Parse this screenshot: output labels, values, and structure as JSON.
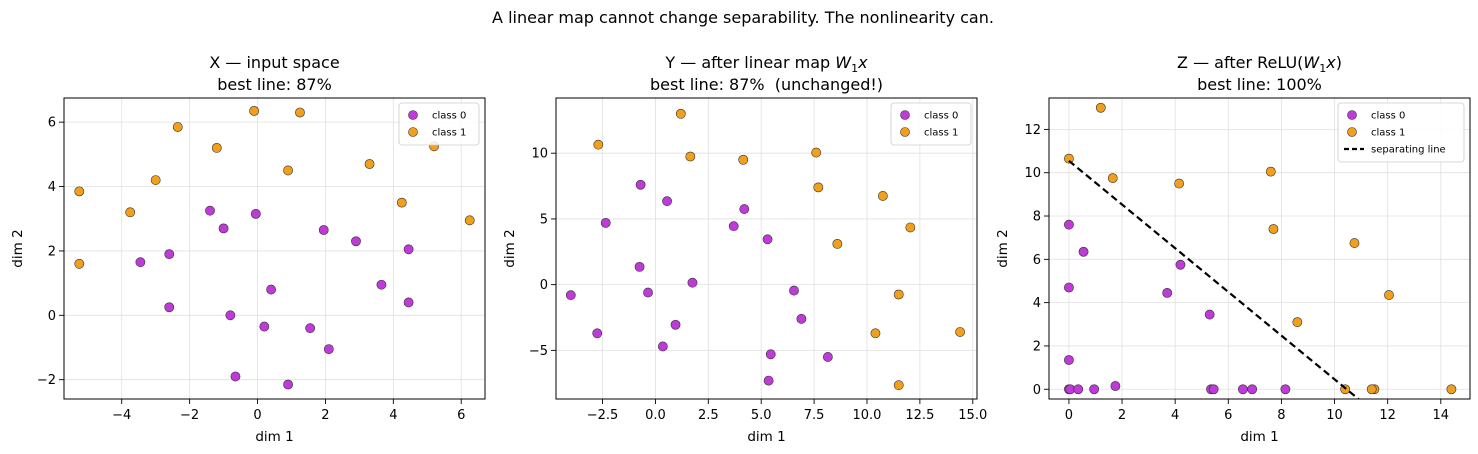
{
  "suptitle": "A linear map cannot change separability. The nonlinearity can.",
  "colors": {
    "class0": "#bf3ad8",
    "class1": "#f2a01b",
    "edge": "#333333",
    "grid": "#e0e0e0",
    "line": "#000000"
  },
  "chart_data": [
    {
      "type": "scatter",
      "title_main": "X — input space",
      "title_math": "",
      "title_suffix": "",
      "subtitle": "best line: 87%",
      "xlabel": "dim 1",
      "ylabel": "dim 2",
      "xlim": [
        -5.7,
        6.7
      ],
      "ylim": [
        -2.6,
        6.75
      ],
      "xticks": [
        -4,
        -2,
        0,
        2,
        4,
        6
      ],
      "xtick_labels": [
        "−4",
        "−2",
        "0",
        "2",
        "4",
        "6"
      ],
      "yticks": [
        -2,
        0,
        2,
        4,
        6
      ],
      "ytick_labels": [
        "−2",
        "0",
        "2",
        "4",
        "6"
      ],
      "grid": true,
      "legend_position": "top-right",
      "series": [
        {
          "name": "class 0",
          "color": "#bf3ad8",
          "points": [
            [
              -3.45,
              1.65
            ],
            [
              -2.6,
              1.9
            ],
            [
              -2.6,
              0.25
            ],
            [
              -1.4,
              3.25
            ],
            [
              -1.0,
              2.7
            ],
            [
              -0.05,
              3.15
            ],
            [
              -0.8,
              0.0
            ],
            [
              -0.65,
              -1.9
            ],
            [
              0.2,
              -0.35
            ],
            [
              0.4,
              0.8
            ],
            [
              0.9,
              -2.15
            ],
            [
              1.55,
              -0.4
            ],
            [
              1.95,
              2.65
            ],
            [
              2.1,
              -1.05
            ],
            [
              2.9,
              2.3
            ],
            [
              3.65,
              0.95
            ],
            [
              4.45,
              2.05
            ],
            [
              4.45,
              0.4
            ]
          ]
        },
        {
          "name": "class 1",
          "color": "#f2a01b",
          "points": [
            [
              -5.25,
              3.85
            ],
            [
              -5.25,
              1.6
            ],
            [
              -3.75,
              3.2
            ],
            [
              -3.0,
              4.2
            ],
            [
              -2.35,
              5.85
            ],
            [
              -1.2,
              5.2
            ],
            [
              -0.1,
              6.35
            ],
            [
              0.9,
              4.5
            ],
            [
              1.25,
              6.3
            ],
            [
              3.3,
              4.7
            ],
            [
              4.25,
              3.5
            ],
            [
              5.2,
              5.25
            ],
            [
              6.25,
              2.95
            ]
          ]
        }
      ]
    },
    {
      "type": "scatter",
      "title_main": "Y — after linear map ",
      "title_math": "W1x",
      "title_suffix": "",
      "subtitle": "best line: 87%  (unchanged!)",
      "xlabel": "dim 1",
      "ylabel": "dim 2",
      "xlim": [
        -4.7,
        15.2
      ],
      "ylim": [
        -8.7,
        14.2
      ],
      "xticks": [
        -2.5,
        0.0,
        2.5,
        5.0,
        7.5,
        10.0,
        12.5,
        15.0
      ],
      "xtick_labels": [
        "−2.5",
        "0.0",
        "2.5",
        "5.0",
        "7.5",
        "10.0",
        "12.5",
        "15.0"
      ],
      "yticks": [
        -5,
        0,
        5,
        10
      ],
      "ytick_labels": [
        "−5",
        "0",
        "5",
        "10"
      ],
      "grid": true,
      "legend_position": "top-right",
      "series": [
        {
          "name": "class 0",
          "color": "#bf3ad8",
          "points": [
            [
              -4.0,
              -0.8
            ],
            [
              -2.75,
              -3.7
            ],
            [
              -2.35,
              4.7
            ],
            [
              -0.7,
              7.6
            ],
            [
              -0.75,
              1.35
            ],
            [
              -0.35,
              -0.6
            ],
            [
              0.55,
              6.35
            ],
            [
              0.95,
              -3.05
            ],
            [
              0.35,
              -4.7
            ],
            [
              1.75,
              0.15
            ],
            [
              3.7,
              4.45
            ],
            [
              4.2,
              5.75
            ],
            [
              5.3,
              3.45
            ],
            [
              5.45,
              -5.3
            ],
            [
              5.35,
              -7.3
            ],
            [
              6.55,
              -0.45
            ],
            [
              6.9,
              -2.6
            ],
            [
              8.15,
              -5.5
            ]
          ]
        },
        {
          "name": "class 1",
          "color": "#f2a01b",
          "points": [
            [
              -2.7,
              10.65
            ],
            [
              1.2,
              13.0
            ],
            [
              1.65,
              9.75
            ],
            [
              4.15,
              9.5
            ],
            [
              7.6,
              10.05
            ],
            [
              7.7,
              7.4
            ],
            [
              8.6,
              3.1
            ],
            [
              10.75,
              6.75
            ],
            [
              12.05,
              4.35
            ],
            [
              11.5,
              -0.75
            ],
            [
              10.4,
              -3.7
            ],
            [
              11.5,
              -7.65
            ],
            [
              14.4,
              -3.6
            ]
          ]
        }
      ]
    },
    {
      "type": "scatter",
      "title_main": "Z — after ReLU(",
      "title_math": "W1x",
      "title_suffix": ")",
      "subtitle": "best line: 100%",
      "xlabel": "dim 1",
      "ylabel": "dim 2",
      "xlim": [
        -0.75,
        15.1
      ],
      "ylim": [
        -0.45,
        13.45
      ],
      "xticks": [
        0,
        2,
        4,
        6,
        8,
        10,
        12,
        14
      ],
      "xtick_labels": [
        "0",
        "2",
        "4",
        "6",
        "8",
        "10",
        "12",
        "14"
      ],
      "yticks": [
        0,
        2,
        4,
        6,
        8,
        10,
        12
      ],
      "ytick_labels": [
        "0",
        "2",
        "4",
        "6",
        "8",
        "10",
        "12"
      ],
      "grid": true,
      "legend_position": "top-right",
      "series": [
        {
          "name": "class 0",
          "color": "#bf3ad8",
          "points": [
            [
              0.0,
              7.6
            ],
            [
              0.0,
              4.7
            ],
            [
              0.0,
              1.35
            ],
            [
              0.0,
              0.0
            ],
            [
              0.05,
              0.0
            ],
            [
              0.35,
              0.0
            ],
            [
              0.55,
              6.35
            ],
            [
              0.95,
              0.0
            ],
            [
              1.75,
              0.15
            ],
            [
              3.7,
              4.45
            ],
            [
              4.2,
              5.75
            ],
            [
              5.3,
              3.45
            ],
            [
              5.35,
              0.0
            ],
            [
              5.45,
              0.0
            ],
            [
              6.55,
              0.0
            ],
            [
              6.9,
              0.0
            ],
            [
              8.15,
              0.0
            ]
          ]
        },
        {
          "name": "class 1",
          "color": "#f2a01b",
          "points": [
            [
              0.0,
              10.65
            ],
            [
              1.2,
              13.0
            ],
            [
              1.65,
              9.75
            ],
            [
              4.15,
              9.5
            ],
            [
              7.6,
              10.05
            ],
            [
              7.7,
              7.4
            ],
            [
              8.6,
              3.1
            ],
            [
              10.75,
              6.75
            ],
            [
              12.05,
              4.35
            ],
            [
              10.4,
              0.0
            ],
            [
              11.5,
              0.0
            ],
            [
              11.4,
              0.0
            ],
            [
              14.4,
              0.0
            ]
          ]
        }
      ],
      "line": {
        "name": "separating line",
        "points": [
          [
            0.0,
            10.55
          ],
          [
            10.9,
            -0.45
          ]
        ]
      }
    }
  ]
}
